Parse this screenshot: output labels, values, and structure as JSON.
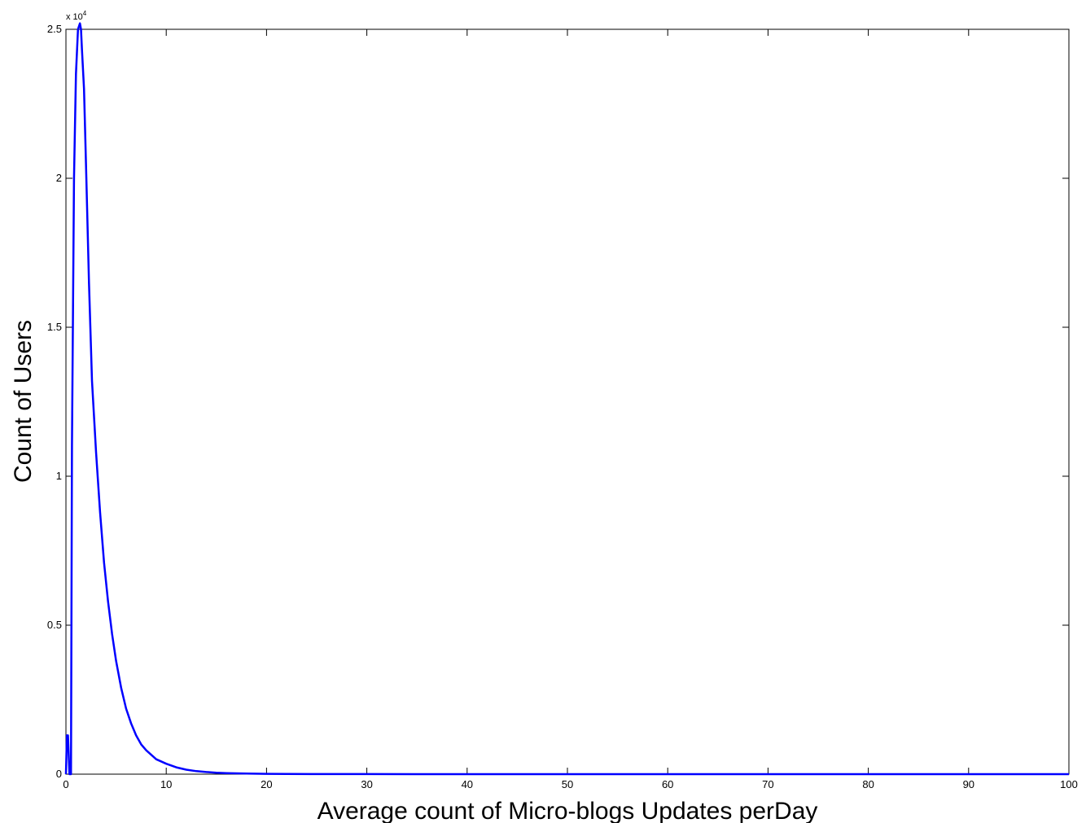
{
  "chart_data": {
    "type": "line",
    "xlabel": "Average count of Micro-blogs Updates perDay",
    "ylabel": "Count of Users",
    "xlim": [
      0,
      100
    ],
    "ylim": [
      0,
      25000
    ],
    "x_ticks": [
      0,
      10,
      20,
      30,
      40,
      50,
      60,
      70,
      80,
      90,
      100
    ],
    "x_tick_labels": [
      "0",
      "10",
      "20",
      "30",
      "40",
      "50",
      "60",
      "70",
      "80",
      "90",
      "100"
    ],
    "y_ticks": [
      0,
      5000,
      10000,
      15000,
      20000,
      25000
    ],
    "y_tick_labels": [
      "0",
      "0.5",
      "1",
      "1.5",
      "2",
      "2.5"
    ],
    "y_scale_base": "x 10",
    "y_scale_exponent": "4",
    "grid": false,
    "line_color": "#0000ff",
    "series": [
      {
        "x": [
          0,
          0.1,
          0.2,
          0.35,
          0.5,
          0.6,
          0.8,
          1.0,
          1.2,
          1.4,
          1.5,
          1.6,
          1.8,
          2.0,
          2.3,
          2.6,
          3.0,
          3.4,
          3.8,
          4.2,
          4.6,
          5.0,
          5.5,
          6.0,
          6.5,
          7.0,
          7.5,
          8.0,
          9.0,
          10,
          11,
          12,
          13,
          14,
          15,
          16,
          18,
          20,
          22,
          25,
          30,
          40,
          50,
          60,
          70,
          80,
          90,
          100
        ],
        "y": [
          0,
          1300,
          1300,
          0,
          0,
          11000,
          20000,
          23500,
          25000,
          25200,
          25000,
          24300,
          23000,
          20500,
          16500,
          13200,
          10800,
          8800,
          7100,
          5800,
          4700,
          3800,
          2900,
          2200,
          1700,
          1300,
          1000,
          800,
          500,
          350,
          230,
          150,
          100,
          70,
          50,
          35,
          20,
          12,
          8,
          4,
          2,
          0,
          0,
          0,
          0,
          0,
          0,
          0
        ]
      }
    ]
  }
}
